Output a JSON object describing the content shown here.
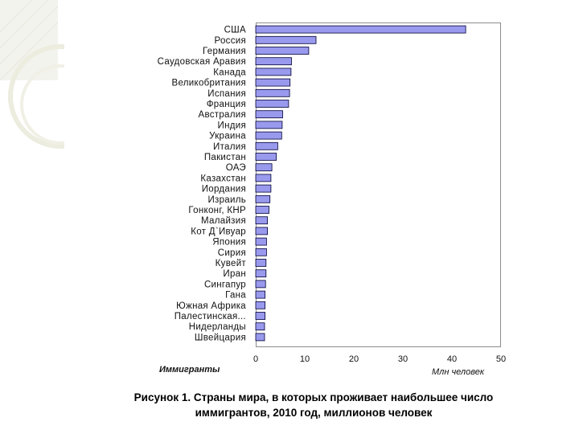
{
  "chart_data": {
    "type": "bar",
    "orientation": "horizontal",
    "categories": [
      "США",
      "Россия",
      "Германия",
      "Саудовская Аравия",
      "Канада",
      "Великобритания",
      "Испания",
      "Франция",
      "Австралия",
      "Индия",
      "Украина",
      "Италия",
      "Пакистан",
      "ОАЭ",
      "Казахстан",
      "Иордания",
      "Израиль",
      "Гонконг, КНР",
      "Малайзия",
      "Кот Д`Ивуар",
      "Япония",
      "Сирия",
      "Кувейт",
      "Иран",
      "Сингапур",
      "Гана",
      "Южная Африка",
      "Палестинская...",
      "Нидерланды",
      "Швейцария"
    ],
    "values": [
      42.8,
      12.3,
      10.8,
      7.3,
      7.2,
      7.0,
      6.9,
      6.7,
      5.5,
      5.4,
      5.3,
      4.5,
      4.2,
      3.3,
      3.1,
      3.1,
      2.9,
      2.7,
      2.4,
      2.4,
      2.2,
      2.2,
      2.1,
      2.1,
      2.0,
      1.9,
      1.9,
      1.9,
      1.8,
      1.8
    ],
    "xlim": [
      0,
      50
    ],
    "xticks": [
      "0",
      "10",
      "20",
      "30",
      "40",
      "50"
    ],
    "xlabel": "Млн человек",
    "ylabel": "Иммигранты",
    "bar_color": "#9999ee",
    "bar_stroke": "#000033",
    "grid": false
  },
  "caption": {
    "line1": "Рисунок 1. Страны мира, в которых проживает наибольшее число",
    "line2": "иммигрантов, 2010 год, миллионов человек"
  }
}
